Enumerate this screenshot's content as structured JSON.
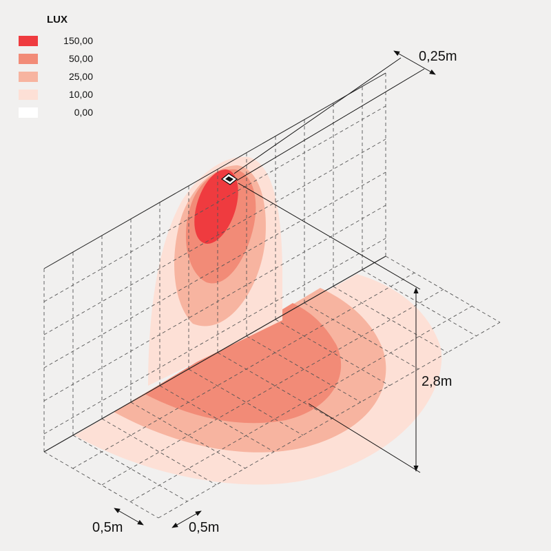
{
  "legend": {
    "title": "LUX",
    "items": [
      {
        "value": "150,00",
        "color": "#ef3b3f"
      },
      {
        "value": "50,00",
        "color": "#f28b77"
      },
      {
        "value": "25,00",
        "color": "#f7b4a0"
      },
      {
        "value": "10,00",
        "color": "#fde0d6"
      },
      {
        "value": "0,00",
        "color": "#ffffff"
      }
    ]
  },
  "dimensions": {
    "projection": "0,25m",
    "height": "2,8m",
    "grid_x": "0,5m",
    "grid_y": "0,5m"
  },
  "colors": {
    "background": "#f1f0ef",
    "lines": "#555555"
  }
}
